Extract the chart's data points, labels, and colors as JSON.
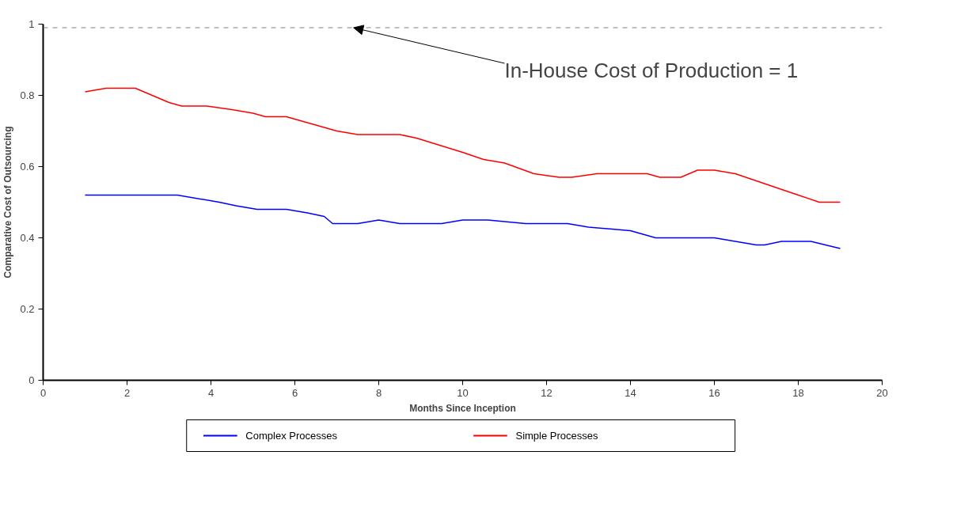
{
  "chart_data": {
    "type": "line",
    "xlabel": "Months Since Inception",
    "ylabel": "Comparative Cost of Outsourcing",
    "xlim": [
      0,
      20
    ],
    "ylim": [
      0,
      1
    ],
    "xticks": [
      0,
      2,
      4,
      6,
      8,
      10,
      12,
      14,
      16,
      18,
      20
    ],
    "yticks": [
      0,
      0.2,
      0.4,
      0.6,
      0.8,
      1
    ],
    "grid": false,
    "legend": "bottom",
    "marker": "none",
    "line_style": "solid",
    "ref_lines": [
      {
        "axis": "y",
        "value": 0.99,
        "color": "#808080",
        "line_style": "dashed"
      }
    ],
    "annotations": [
      {
        "text": "In-House Cost of Production = 1",
        "x": 7.4,
        "y": 0.99
      }
    ],
    "series": [
      {
        "name": "Complex Processes",
        "color": "#0000ff",
        "x": [
          1,
          1.5,
          2.3,
          2.6,
          3.2,
          4.2,
          4.6,
          5.1,
          5.8,
          6.3,
          6.7,
          6.9,
          7.2,
          7.5,
          8,
          8.5,
          9.5,
          10,
          10.6,
          11.5,
          12.5,
          13,
          14,
          14.6,
          15.2,
          16,
          16.5,
          17,
          17.2,
          17.6,
          18.3,
          19
        ],
        "values": [
          0.52,
          0.52,
          0.52,
          0.52,
          0.52,
          0.5,
          0.49,
          0.48,
          0.48,
          0.47,
          0.46,
          0.44,
          0.44,
          0.44,
          0.45,
          0.44,
          0.44,
          0.45,
          0.45,
          0.44,
          0.44,
          0.43,
          0.42,
          0.4,
          0.4,
          0.4,
          0.39,
          0.38,
          0.38,
          0.39,
          0.39,
          0.37
        ]
      },
      {
        "name": "Simple Processes",
        "color": "#ff0000",
        "x": [
          1,
          1.5,
          2.2,
          2.6,
          3,
          3.3,
          3.9,
          4.5,
          5,
          5.3,
          5.8,
          6.4,
          6.7,
          7,
          7.5,
          8,
          8.5,
          8.9,
          10,
          10.5,
          11,
          11.7,
          12.3,
          12.6,
          13.2,
          13.6,
          14.4,
          14.7,
          15.2,
          15.6,
          16,
          16.5,
          17.5,
          18,
          18.5,
          19
        ],
        "values": [
          0.81,
          0.82,
          0.82,
          0.8,
          0.78,
          0.77,
          0.77,
          0.76,
          0.75,
          0.74,
          0.74,
          0.72,
          0.71,
          0.7,
          0.69,
          0.69,
          0.69,
          0.68,
          0.64,
          0.62,
          0.61,
          0.58,
          0.57,
          0.57,
          0.58,
          0.58,
          0.58,
          0.57,
          0.57,
          0.59,
          0.59,
          0.58,
          0.54,
          0.52,
          0.5,
          0.5
        ]
      }
    ]
  }
}
